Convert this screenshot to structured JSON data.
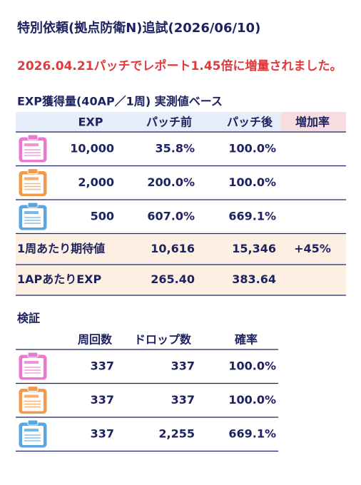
{
  "title": "特別依頼(拠点防衛N)追試(2026/06/10)",
  "notice": "2026.04.21パッチでレポート1.45倍に増量されました。",
  "exp_table": {
    "caption": "EXP獲得量(40AP／1周) 実測値ベース",
    "header": [
      "EXP",
      "パッチ前",
      "パッチ後",
      "増加率"
    ],
    "rows": [
      [
        "10,000",
        "35.8%",
        "100.0%"
      ],
      [
        "2,000",
        "200.0%",
        "100.0%"
      ],
      [
        "500",
        "607.0%",
        "669.1%"
      ]
    ],
    "summary_rows": [
      [
        "1周あたり期待値",
        "10,616",
        "15,346",
        "+45%"
      ],
      [
        "1APあたりEXP",
        "265.40",
        "383.64"
      ]
    ]
  },
  "verification_table": {
    "caption": "検証",
    "header": [
      "周回数",
      "ドロップ数",
      "確率"
    ],
    "rows": [
      [
        "337",
        "337",
        "100.0%"
      ],
      [
        "337",
        "337",
        "100.0%"
      ],
      [
        "337",
        "2,255",
        "669.1%"
      ]
    ]
  }
}
